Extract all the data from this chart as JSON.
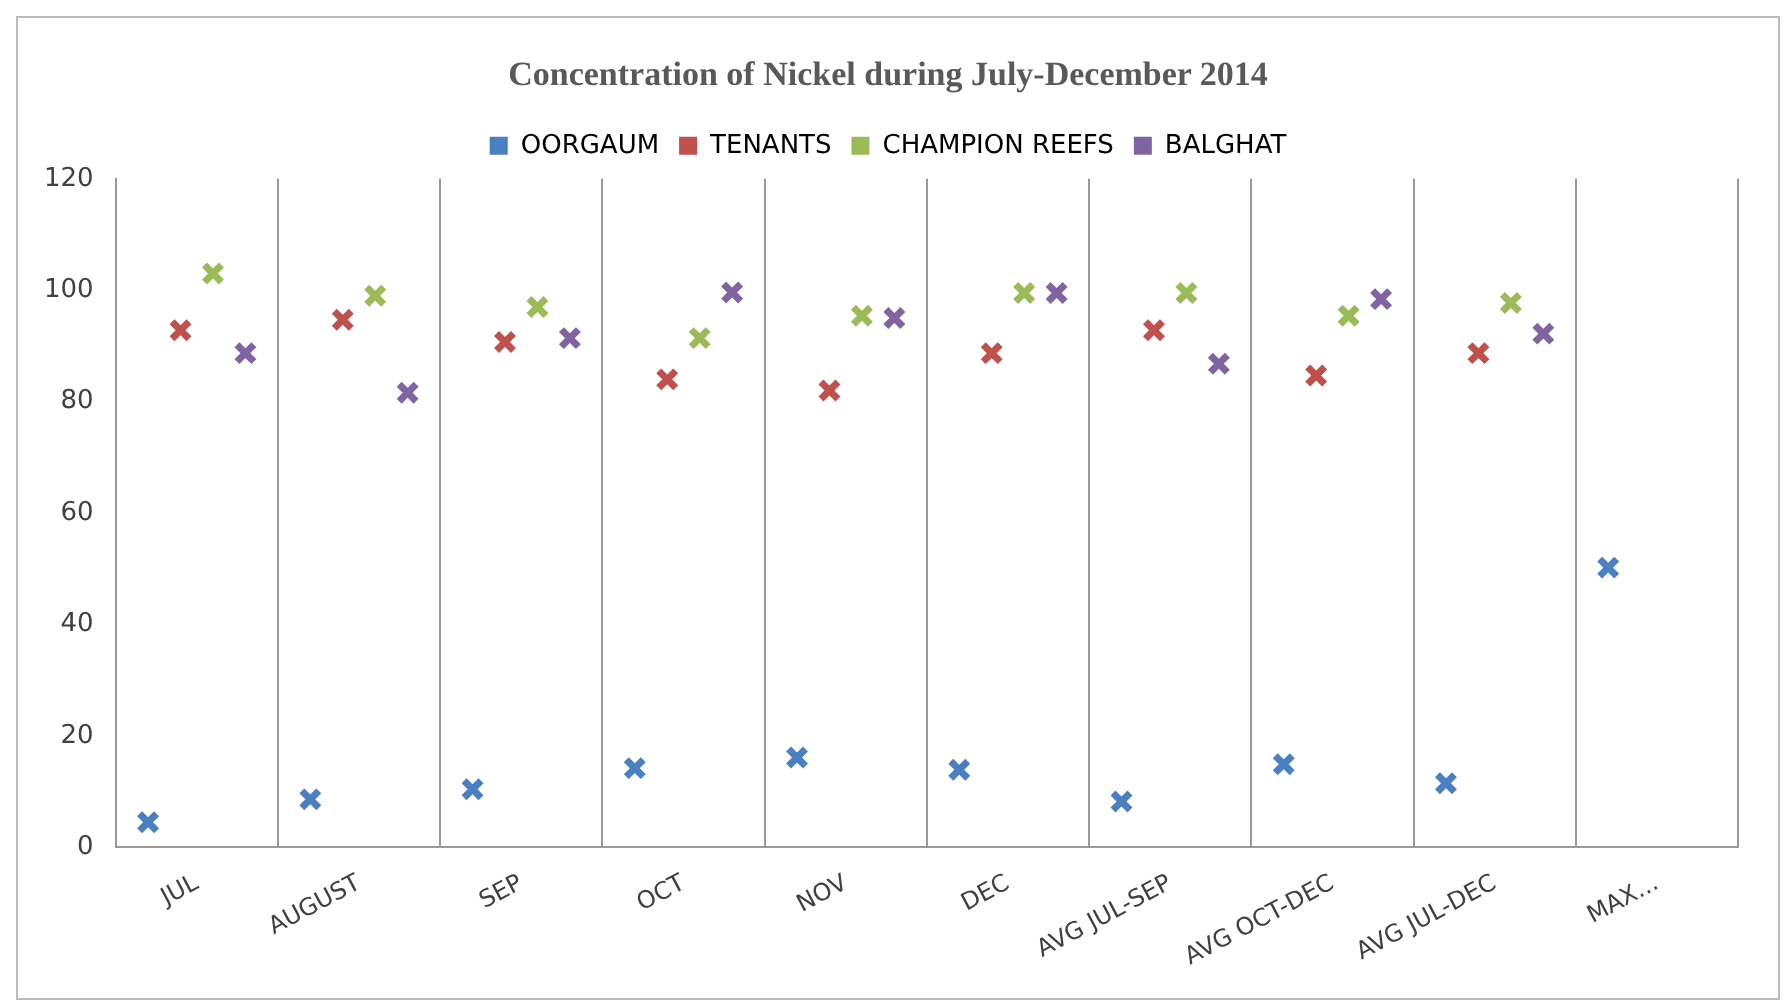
{
  "chart_data": {
    "type": "scatter",
    "title": "Concentration of Nickel during July-December 2014",
    "categories": [
      "JUL",
      "AUGUST",
      "SEP",
      "OCT",
      "NOV",
      "DEC",
      "AVG JUL-SEP",
      "AVG OCT-DEC",
      "AVG JUL-DEC",
      "MAX..."
    ],
    "series": [
      {
        "name": "OORGAUM",
        "color": "#4a7fc1",
        "values": [
          4.5,
          8.6,
          10.4,
          14.2,
          16.1,
          13.9,
          8.2,
          14.9,
          11.5,
          50.2
        ]
      },
      {
        "name": "TENANTS",
        "color": "#c0504d",
        "values": [
          92.8,
          94.7,
          90.7,
          84,
          82,
          88.7,
          92.8,
          84.7,
          88.7,
          null
        ]
      },
      {
        "name": "CHAMPION REEFS",
        "color": "#9bbb59",
        "values": [
          103,
          99,
          97,
          91.4,
          95.4,
          99.5,
          99.5,
          95.4,
          97.7,
          null
        ]
      },
      {
        "name": "BALGHAT",
        "color": "#8064a2",
        "values": [
          88.7,
          81.6,
          91.4,
          99.6,
          95,
          99.5,
          86.8,
          98.4,
          92.2,
          null
        ]
      }
    ],
    "ylim": [
      0,
      120
    ],
    "yticks": [
      0,
      20,
      40,
      60,
      80,
      100,
      120
    ],
    "grid": "x",
    "legend": "top",
    "marker": "cross"
  }
}
